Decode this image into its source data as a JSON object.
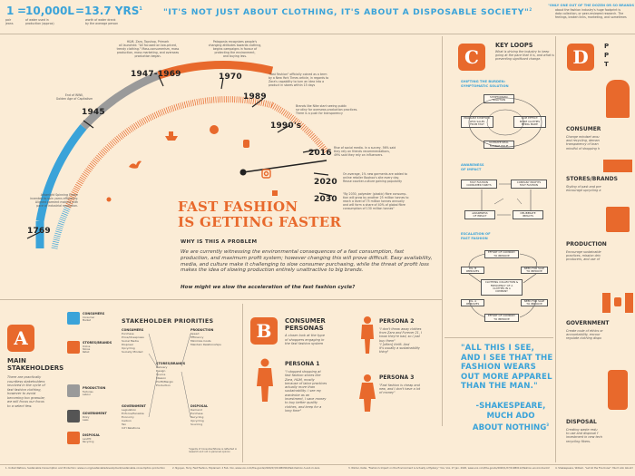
{
  "header": {
    "stat1_value": "1",
    "stat1_caption": "pair\njeans",
    "stat2_value": "10,000L",
    "stat2_caption": "of water used in\nproduction (approx)",
    "stat3_value": "13.7 YRS",
    "stat3_sup": "1",
    "stat3_caption": "worth of water drank\nby the average person",
    "quote": "\"IT'S NOT JUST ABOUT CLOTHING, IT'S ABOUT A DISPOSABLE SOCIETY\"",
    "quote_sup": "2",
    "right_title": "\"ONLY ONE OUT OF THE DOZEN OR SO BRANDS",
    "right_text": "about the fashion industry's huge footprint is\ndata collection, or peer-reviewed research. The\nfeelings, broken links, marketing, and sometimes"
  },
  "timeline": {
    "title_line1": "FAST FASHION",
    "title_line2": "IS GETTING FASTER",
    "years": [
      "1769",
      "1945",
      "1947-1969",
      "1970",
      "1989",
      "1990's",
      "2016",
      "2020",
      "2030"
    ],
    "notes": {
      "1769": "Arkwright Spinning Frame\ninvented to spin yarns efficiently.\nAligned garment making with\npace of industrial revolution.",
      "1945": "End of WWII,\nGolden Age of Capitalism",
      "1947-1969": "H&M, Zara, Topshop, Primark\nall launched. \"All focused on low-priced,\ntrendy clothing.\" Mass-consumerism, mass\nproduction, mass marketing, and overseas\nproduction began.",
      "1970": "Patagonia recognizes people's\nchanging attitudes towards clothing,\nbegins campaigns in favour of\nprotecting the environment,\nand buying less.",
      "1989": "\"Fast Fashion\" officially coined as a term\nby a New York Times article, in regards to\nZara's capability to turn an idea into a\nproduct in stores within 15 days",
      "1990s": "Brands like Nike start seeing public\nscrutiny for overseas production practices.\nThere is a push for transparency",
      "2016": "Rise of social media. In a survey, 56% said\nthey rely on friends recommendations,\n49% said they rely on influencers.",
      "2020": "On average, 1% new garments are added to\nonline retailer Boohoo's site every day.\nReuse counter-culture gaining popularity",
      "2030": "\"By 2030, polyester (plastic) fibre consump-\ntion will grow by another 25 million tonnes to\nreach a level of 75 million tonnes annually\nand will form a share of 40% of global fibre\nconsumption of 130 million tonnes\""
    }
  },
  "problem": {
    "heading": "WHY IS THIS A PROBLEM",
    "body": "We are currently witnessing the environmental consequences of a fast consumption, fast production, and maximum profit system; however changing this will prove difficult. Easy availability, media, and culture make it challenging to slow consumer purchasing, while the threat of profit loss makes the idea of slowing production entirely unattractive to big brands.",
    "question": "How might we slow the acceleration of the fast fashion cycle?"
  },
  "section_a": {
    "letter": "A",
    "title": "MAIN\nSTAKEHOLDERS",
    "body": "There are practically\ncountless stakeholders\ninvolved in the cycle of\nfast fashion clothing,\nhowever to avoid\nbecoming too granular,\nwe will focus our focus\nto a select few.",
    "labels": [
      "CONSUMERS",
      "STORES/BRANDS",
      "PRODUCTION",
      "GOVERNMENT",
      "DISPOSAL"
    ],
    "sublabels": [
      "Consumer\nMarket",
      "Online\nStores\nRetail",
      "Factories\nLabour",
      "Policy\nLaws",
      "Landfill\nRecycling"
    ]
  },
  "priorities": {
    "heading": "STAKEHOLDER PRIORITIES",
    "groups": [
      {
        "label": "CONSUMERS",
        "items": [
          "Purchase",
          "Price/Cheapness",
          "Social Media",
          "Disposal",
          "Upcycling",
          "Socially Minded"
        ]
      },
      {
        "label": "STORES/BRANDS",
        "items": [
          "Delivery",
          "Design",
          "Source",
          "Mission",
          "Profit/Margin",
          "Production"
        ]
      },
      {
        "label": "PRODUCTION",
        "items": [
          "Speed",
          "Efficiency",
          "Minimize Costs",
          "Maintain Relationships"
        ]
      },
      {
        "label": "GOVERNMENT",
        "items": [
          "Legislation",
          "Enforce/Penalize",
          "Economy",
          "Carbon",
          "Tax",
          "Int'l Relations"
        ]
      },
      {
        "label": "DISPOSAL",
        "items": [
          "Demand",
          "Purchase",
          "Recycling",
          "Upcycling",
          "Sourcing"
        ]
      }
    ],
    "footnote": "*Agents of Consumer/Stores is reflected in\nresearch and not in personal opinion"
  },
  "section_b": {
    "letter": "B",
    "title": "CONSUMER\nPERSONAS",
    "body": "A closer look at the type\nof shoppers engaging in\nthe fast fashion system",
    "persona1_title": "PERSONA 1",
    "persona1_text": "\"I stopped shopping at\nfast fashion stores like\nZara, H&M, mostly\nbecause of labor practices\nactually more than\nsustainability. I see my\nwardrobe as an\ninvestment, I save money\nto buy better quality\nclothes, and keep for a\nlong time\"",
    "persona2_title": "PERSONA 2",
    "persona2_text": "\"I don't throw away clothes\nfrom Zara and Forever 21, I\nknow they're bad, so I just\nbuy them\"\n\"I [often] thrift. And\nit's usually a sustainability\nthing\"",
    "persona3_title": "PERSONA 3",
    "persona3_text": "\"Fast fashion is cheap and\nnew, and I don't have a lot\nof money\""
  },
  "section_c": {
    "letter": "C",
    "title": "KEY LOOPS",
    "body": "What is driving the industry to keep\ngoing at the pace that it is, and what is\npreventing significant change.",
    "loop1_title": "SHIFTING THE BURDEN:\nSYMPTOMATIC SOLUTION",
    "loop1_nodes": [
      "SYMPTOMATIC\nSOLUTION",
      "PROBLEM SYMPTOM:\nLESS SALES\nFROM FAST",
      "SIDE EFFECT:\nMORE CLOTHES\nBEING MADE",
      "ULTIMATE REAL\nFIXABLE ISSUE",
      "FUNDAMENTAL\nSOLUTION"
    ],
    "loop2_title": "AWARENESS\nOF IMPACT",
    "loop2_nodes": [
      "FAST FASHION\nCONSUMER HABITS",
      "COMPANY PROFITS\nFAST FASHION",
      "AWARENESS\nOF IMPACT",
      "DELIBERATE\nIMPACTS"
    ],
    "loop3_title": "ESCALATION OF\nFAST FASHION",
    "loop3_nodes": [
      "EFFORT OF COMPANY\nTO IMPROVE",
      "DIL. B IMPROVES",
      "NEED FOR SALE\nTO IMPROVE",
      "CLOTHING COLLECTION &\nFREQUENCY OF A\nCLOTHES IN A\nCOMPANY",
      "DIL. A IMPROVES",
      "NEED FOR SALE\nTO IMPROVE",
      "EFFORT OF COMPANY\nTO IMPROVE"
    ]
  },
  "shakespeare": {
    "quote": "\"ALL THIS I SEE,\nAND I SEE THAT THE\nFASHION WEARS\nOUT MORE APPAREL\nTHAN THE MAN.\"",
    "author": "-SHAKESPEARE,\nMUCH ADO\nABOUT NOTHING",
    "sup": "3"
  },
  "section_d": {
    "letter": "D",
    "title_partial": "P\nP\nT",
    "consumer_title": "CONSUMER",
    "consumer_text": "Change mindset arou\nand recycling, deman\ntransparency of bran\nmindful of shopping h",
    "stores_title": "STORES/BRANDS",
    "stores_text": "Styling of past and pre\nencourage upcycling a",
    "production_title": "PRODUCTION",
    "production_text": "Encourage sustainable\npractices, mission driv\nproducers, and use of",
    "government_title": "GOVERNMENT",
    "government_text": "Create code of ethics or\naccountability, encour\nregulate clothing dispo",
    "disposal_title": "DISPOSAL",
    "disposal_text": "Creating waste redu\nto use and disposal f\ninvestment in new tech\nrecycling fibers."
  },
  "footer": {
    "ref1": "1. United Nations, Sustainable Consumption and Production: www.un.org/sustainabledevelopment/sustainable-consumption-production",
    "ref2": "2. Nguyen, Terry. Fast Fashion, Explained. 2 Feb. Vox, www.vox.com/the-goods/2020/2/3/21080364/fast-fashion-h-and-m-zara",
    "ref3": "3. Winter, Katie. \"Fashion's Impact on the Environment is Actually a Mystery.\" Vox, Vox, 27 Jan. 2020, www.vox.com/the-goods/2020/1/27/21080112/fashion-environment-fast-fashion-impact",
    "ref4": "4. Shakespeare, William. \"Let All the Fire Know\". Much Ado About Nothing.",
    "icons": [
      "shirt-icon",
      "factory-icon",
      "sweater-icon",
      "thumbs-up-icon",
      "bag-icon",
      "phone-icon",
      "dress-icon",
      "ship-icon"
    ]
  },
  "colors": {
    "background": "#fbecd6",
    "orange": "#e8692c",
    "blue": "#3aa3d9",
    "grey": "#9a9a9a"
  }
}
